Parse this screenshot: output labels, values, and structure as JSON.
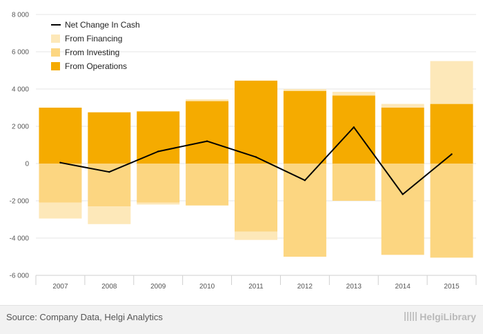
{
  "chart_data": {
    "type": "bar",
    "stacked": true,
    "categories": [
      "2007",
      "2008",
      "2009",
      "2010",
      "2011",
      "2012",
      "2013",
      "2014",
      "2015"
    ],
    "series": [
      {
        "name": "From Operations",
        "type": "bar",
        "color": "#f5ab00",
        "values": [
          3000,
          2750,
          2800,
          3350,
          4450,
          3900,
          3650,
          3000,
          3200
        ]
      },
      {
        "name": "From Investing",
        "type": "bar",
        "color": "#fcd681",
        "values": [
          -2100,
          -2300,
          -2100,
          -2250,
          -3650,
          -5000,
          -2000,
          -4900,
          -5050
        ]
      },
      {
        "name": "From Financing",
        "type": "bar",
        "color": "#fde8b9",
        "values": [
          -850,
          -950,
          -100,
          100,
          -450,
          100,
          200,
          200,
          2300
        ]
      },
      {
        "name": "Net Change In Cash",
        "type": "line",
        "color": "#000000",
        "values": [
          50,
          -450,
          650,
          1200,
          350,
          -900,
          1950,
          -1650,
          500
        ]
      }
    ],
    "ylim": [
      -6000,
      8000
    ],
    "yticks": [
      -6000,
      -4000,
      -2000,
      0,
      2000,
      4000,
      6000,
      8000
    ],
    "ytick_labels": [
      "-6 000",
      "-4 000",
      "-2 000",
      "0",
      "2 000",
      "4 000",
      "6 000",
      "8 000"
    ],
    "grid": true,
    "legend_position": "top-left",
    "legend": [
      "Net Change In Cash",
      "From Financing",
      "From Investing",
      "From Operations"
    ],
    "title": "",
    "xlabel": "",
    "ylabel": ""
  },
  "footer": {
    "source": "Source: Company Data, Helgi Analytics",
    "brand": "HelgiLibrary"
  }
}
